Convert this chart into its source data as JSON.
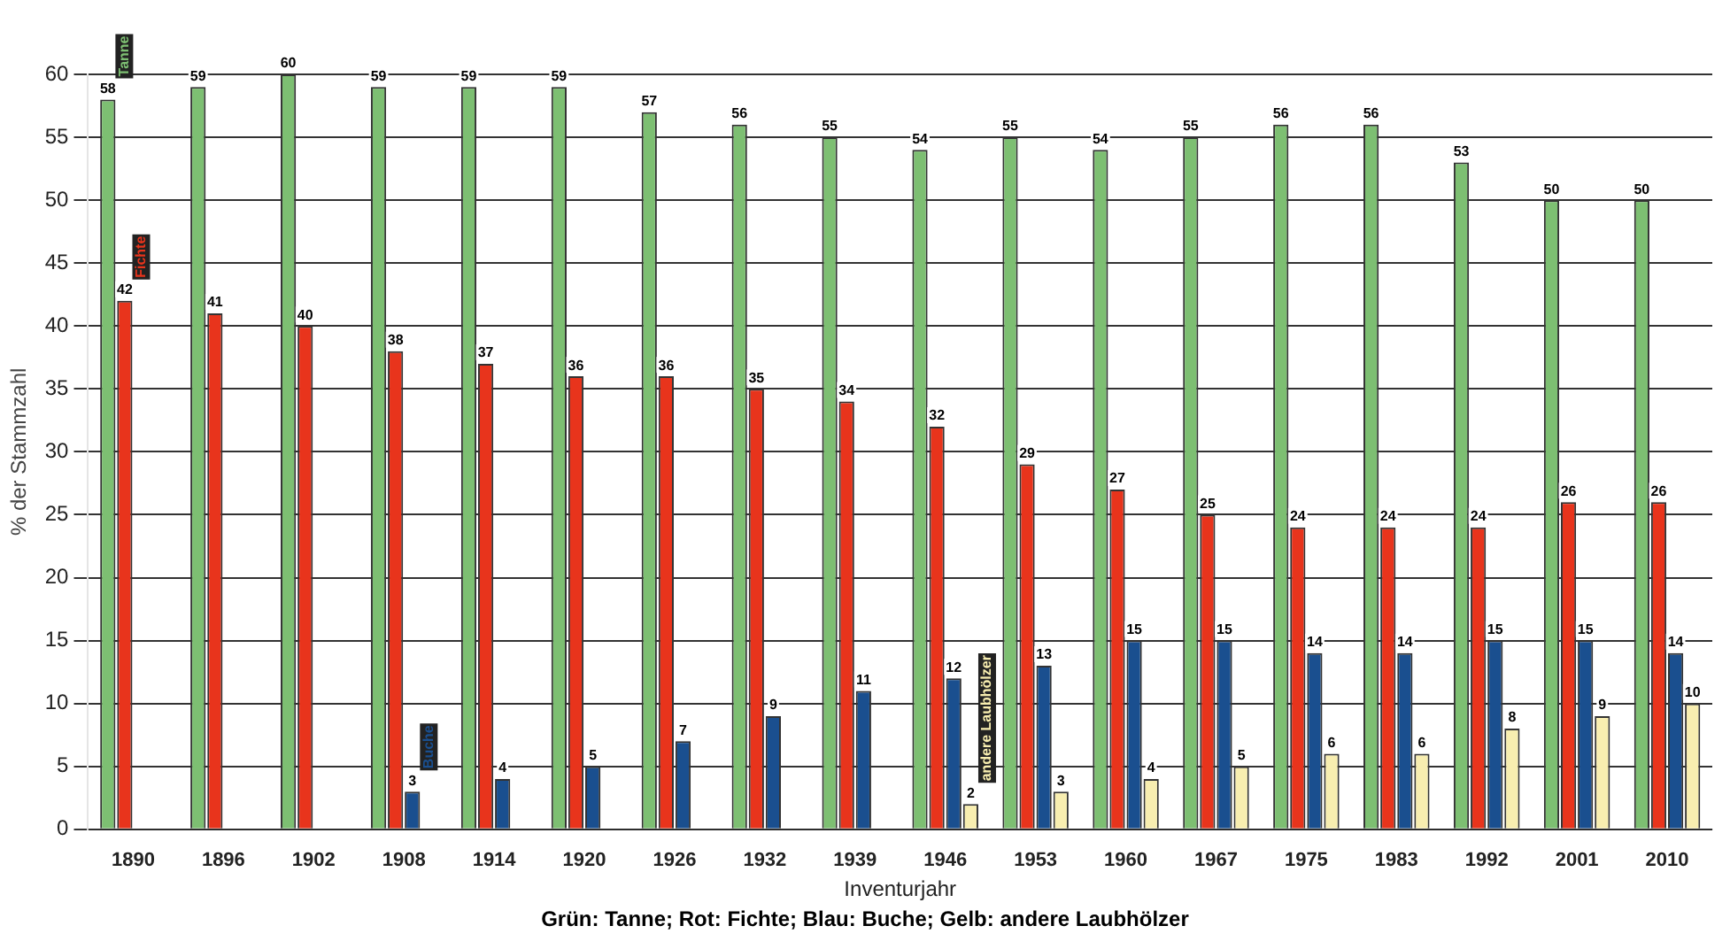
{
  "chart_data": {
    "type": "bar",
    "xlabel": "Inventurjahr",
    "ylabel": "% der Stammzahl",
    "categories": [
      "1890",
      "1896",
      "1902",
      "1908",
      "1914",
      "1920",
      "1926",
      "1932",
      "1939",
      "1946",
      "1953",
      "1960",
      "1967",
      "1975",
      "1983",
      "1992",
      "2001",
      "2010"
    ],
    "series": [
      {
        "name": "Tanne",
        "color": "#7dbf72",
        "values": [
          58,
          59,
          60,
          59,
          59,
          59,
          57,
          56,
          55,
          54,
          55,
          54,
          55,
          56,
          56,
          53,
          50,
          50
        ]
      },
      {
        "name": "Fichte",
        "color": "#e8341c",
        "values": [
          42,
          41,
          40,
          38,
          37,
          36,
          36,
          35,
          34,
          32,
          29,
          27,
          25,
          24,
          24,
          24,
          26,
          26
        ]
      },
      {
        "name": "Buche",
        "color": "#1a4f8f",
        "values": [
          null,
          null,
          null,
          3,
          4,
          5,
          7,
          9,
          11,
          12,
          13,
          15,
          15,
          14,
          14,
          15,
          15,
          14
        ]
      },
      {
        "name": "andere Laubhölzer",
        "color": "#f8eeb0",
        "values": [
          null,
          null,
          null,
          null,
          null,
          null,
          null,
          null,
          null,
          2,
          3,
          4,
          5,
          6,
          6,
          8,
          9,
          10
        ]
      }
    ],
    "ylim": [
      0,
      60
    ],
    "yticks": [
      0,
      5,
      10,
      15,
      20,
      25,
      30,
      35,
      40,
      45,
      50,
      55,
      60
    ],
    "grid": "y",
    "legend": false,
    "data_labels": true,
    "annotations": [
      "Grün: Tanne; Rot: Fichte; Blau: Buche; Gelb: andere Laubhölzer"
    ]
  }
}
